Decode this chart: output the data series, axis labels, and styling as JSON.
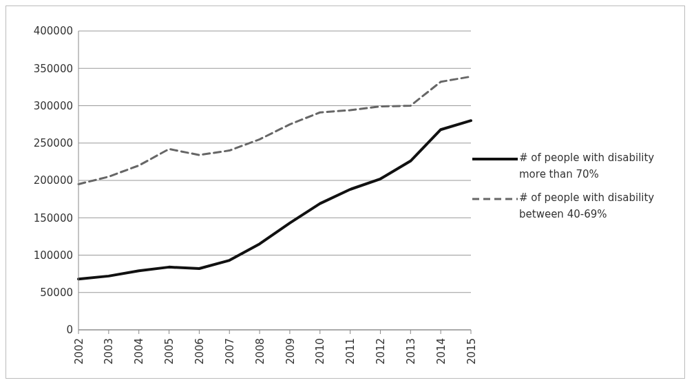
{
  "chart_data": {
    "type": "line",
    "categories": [
      "2002",
      "2003",
      "2004",
      "2005",
      "2006",
      "2007",
      "2008",
      "2009",
      "2010",
      "2011",
      "2012",
      "2013",
      "2014",
      "2015"
    ],
    "series": [
      {
        "name": "# of people with disability more than 70%",
        "color": "#111111",
        "line_style": "solid",
        "values": [
          68000,
          72000,
          79000,
          84000,
          82000,
          93000,
          115000,
          143000,
          169000,
          188000,
          202000,
          226000,
          268000,
          280000
        ]
      },
      {
        "name": "# of people with disability between 40-69%",
        "color": "#666666",
        "line_style": "dashed",
        "values": [
          195000,
          205000,
          220000,
          242000,
          234000,
          240000,
          255000,
          275000,
          291000,
          294000,
          299000,
          300000,
          332000,
          339000
        ]
      }
    ],
    "ylim": [
      0,
      400000
    ],
    "yticks": [
      0,
      50000,
      100000,
      150000,
      200000,
      250000,
      300000,
      350000,
      400000
    ],
    "grid": "y",
    "legend": "right",
    "marker": "none"
  }
}
